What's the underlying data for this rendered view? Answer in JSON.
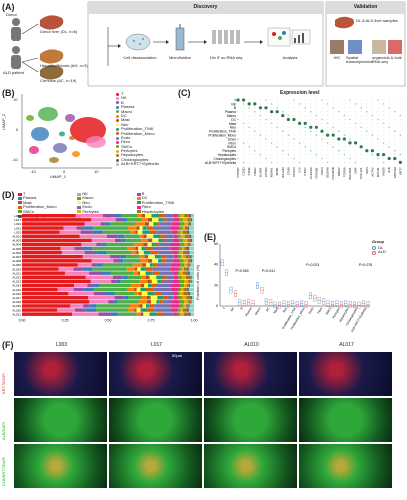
{
  "panel_labels": {
    "A": "(A)",
    "B": "(B)",
    "C": "(C)",
    "D": "(D)",
    "E": "(E)",
    "F": "(F)"
  },
  "panel_a": {
    "discovery_title": "Discovery",
    "validation_title": "Validation",
    "donor": "Donor",
    "donor_liver": "Donor liver (DL, n=6)",
    "ald_patient": "ALD patient",
    "hepatitis": "Hepatitis/fibrosis (AH, n=3)",
    "cirrhosis": "Cirrhosis (AC, n=19)",
    "step1": "Cell disassociation",
    "step2": "Microfluidics",
    "step3": "10x 5' sc-RNA seq",
    "step4": "Analysis",
    "val_samples": "DL & ALD liver samples",
    "ihc": "IHC",
    "spatial": "Spatial transcriptomics",
    "organoids": "organoids & bulk RNA seq"
  },
  "panel_b": {
    "xlabel": "UMAP_1",
    "ylabel": "UMAP_2",
    "xticks": [
      "-10",
      "0",
      "10"
    ],
    "yticks": [
      "10",
      "0",
      "-10"
    ],
    "legend": [
      {
        "name": "T",
        "color": "#e41a1c"
      },
      {
        "name": "NK",
        "color": "#f781bf"
      },
      {
        "name": "B",
        "color": "#984ea3"
      },
      {
        "name": "Plasma",
        "color": "#377eb8"
      },
      {
        "name": "Macro",
        "color": "#4daf4a"
      },
      {
        "name": "DC",
        "color": "#ff7f00"
      },
      {
        "name": "Mast",
        "color": "#a65628"
      },
      {
        "name": "Neu",
        "color": "#ffff33"
      },
      {
        "name": "Proliferation_T/NK",
        "color": "#1b9e77"
      },
      {
        "name": "Proliferation_Mono",
        "color": "#d95f02"
      },
      {
        "name": "Endo",
        "color": "#7570b3"
      },
      {
        "name": "Fibro",
        "color": "#e7298a"
      },
      {
        "name": "SMCs",
        "color": "#66a61e"
      },
      {
        "name": "Pericytes",
        "color": "#e6ab02"
      },
      {
        "name": "Hepatocytes",
        "color": "#a6761d"
      },
      {
        "name": "Cholangiocytes",
        "color": "#666666"
      },
      {
        "name": "ALB+KRT7+Epithelia",
        "color": "#8dd3c7"
      }
    ]
  },
  "panel_c": {
    "title": "Expression level",
    "rows": [
      "T",
      "NK",
      "B",
      "Plasma",
      "Macro",
      "DC",
      "Mast",
      "Neu",
      "Proliferation_T/NK",
      "Proliferation_Mono",
      "Endo",
      "Fibro",
      "SMCs",
      "Pericytes",
      "Hepatocytes",
      "Cholangiocytes",
      "ALB+KRT7+Epithelia"
    ],
    "genes": [
      "PTPRC",
      "CD3D",
      "CD3E",
      "NKG7",
      "KLRD1",
      "CD79A",
      "MS4A1",
      "MZB1",
      "JCHAIN",
      "CD68",
      "CD163",
      "LYZ",
      "CD1C",
      "CLEC9A",
      "TPSAB1",
      "CPA3",
      "S100A8",
      "FCGR3B",
      "MKI67",
      "TOP2A",
      "PECAM1",
      "VWF",
      "COL1A1",
      "DCN",
      "ACTA2",
      "MYH11",
      "RGS5",
      "ALB",
      "EPCAM",
      "KRT7"
    ]
  },
  "panel_d": {
    "legend": [
      "T",
      "NK",
      "B",
      "Plasma",
      "Macro",
      "DC",
      "Mast",
      "Neu",
      "Proliferation_T/NK",
      "Proliferation_Mono",
      "Endo",
      "Fibro",
      "SMCs",
      "Pericytes",
      "Hepatocytes",
      "Cholangiocytes",
      "ALB+KRT7+Epithelia"
    ],
    "samples": [
      "L003",
      "L017",
      "L019",
      "L021",
      "L023",
      "AL001",
      "AL003",
      "AL004",
      "AL005",
      "AL006",
      "AL007",
      "AL008",
      "AL009",
      "AL010",
      "AL011",
      "AL012",
      "AL013",
      "AL014",
      "AL015",
      "AL016",
      "AL017",
      "AL018",
      "AL019",
      "AL020",
      "AL021"
    ],
    "xticks": [
      "0.00",
      "0.25",
      "0.50",
      "0.75",
      "1.00"
    ]
  },
  "panel_e": {
    "ylabel": "Fraction of cells (%)",
    "legend_title": "Group",
    "groups": [
      {
        "name": "DL",
        "color": "#5b8fd6"
      },
      {
        "name": "ALD",
        "color": "#e06666"
      }
    ],
    "yticks": [
      "60",
      "40",
      "20",
      "0"
    ],
    "categories": [
      "T",
      "NK",
      "B",
      "Plasma",
      "Macro",
      "DC",
      "Mast",
      "Neu",
      "Proliferation_T/NK",
      "Proliferation_Mono",
      "Endo",
      "Fibro",
      "SMCs",
      "Pericytes",
      "Hepatocytes",
      "Cholangiocytes",
      "ALB+KRT7+Epithelia"
    ],
    "pvalues": [
      {
        "text": "P=0.053",
        "cat": 2
      },
      {
        "text": "P=0.041",
        "cat": 5
      },
      {
        "text": "P=0.023",
        "cat": 10
      },
      {
        "text": "P=0.078",
        "cat": 16
      }
    ]
  },
  "panel_f": {
    "cols": [
      "L003",
      "L017",
      "AL010",
      "AL017"
    ],
    "rows": [
      "KRT7/DAPI",
      "ALB/DAPI",
      "ALB/KRT7/DAPI"
    ],
    "scalebar": "50μm"
  }
}
